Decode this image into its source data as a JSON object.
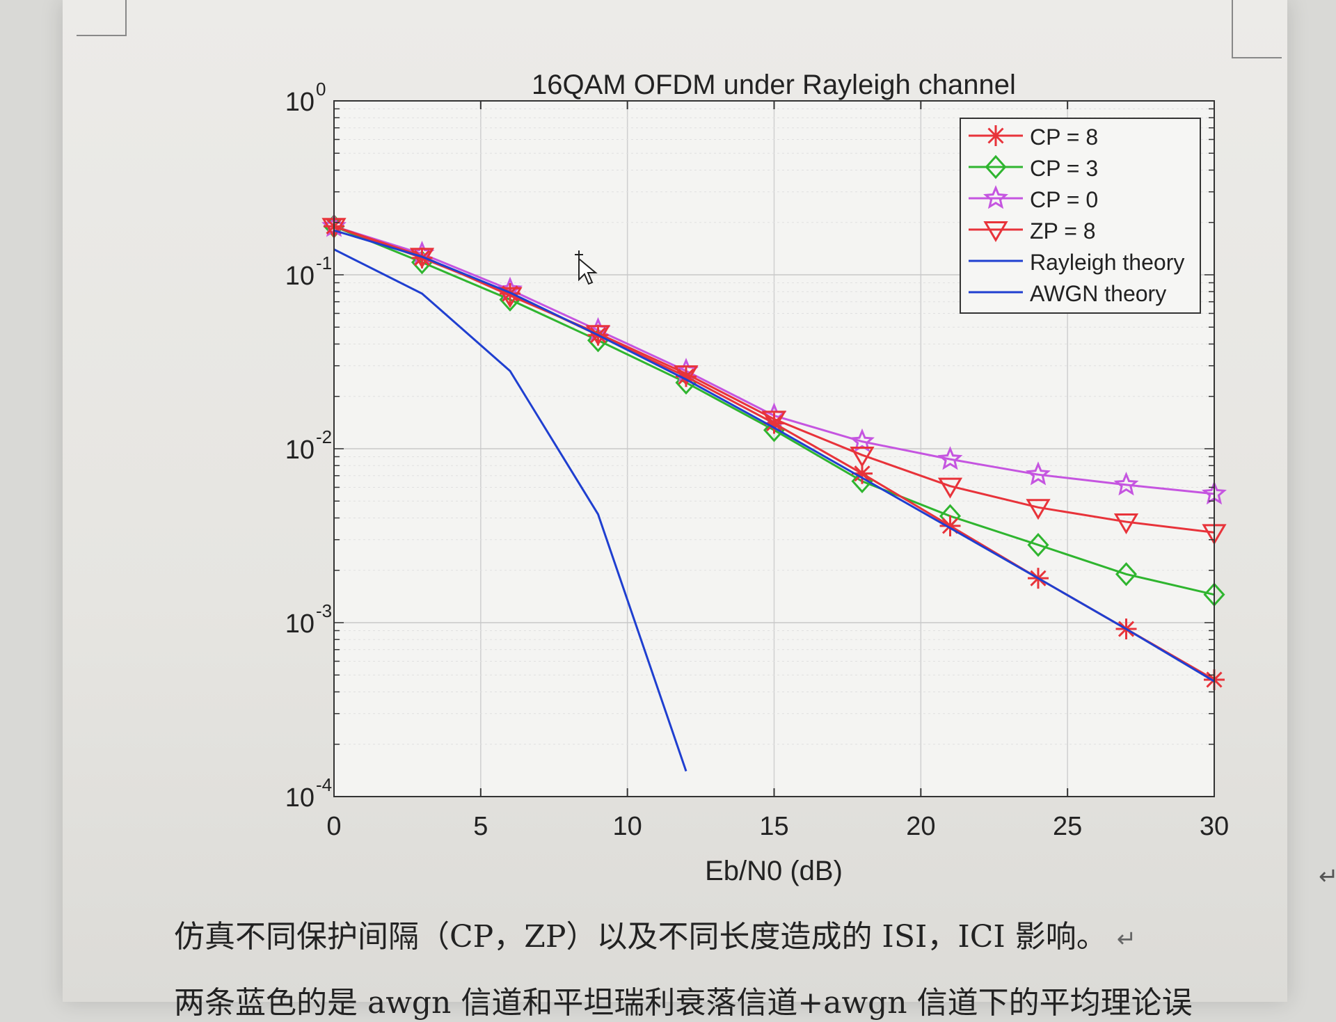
{
  "chart_data": {
    "type": "line",
    "title": "16QAM OFDM under Rayleigh channel",
    "xlabel": "Eb/N0 (dB)",
    "ylabel": "",
    "xlim": [
      0,
      30
    ],
    "ylim": [
      0.0001,
      1
    ],
    "yscale": "log",
    "grid": true,
    "legend_position": "top-right",
    "x_ticks": [
      0,
      5,
      10,
      15,
      20,
      25,
      30
    ],
    "x_tick_labels": [
      "0",
      "5",
      "10",
      "15",
      "20",
      "25",
      "30"
    ],
    "y_ticks": [
      0.0001,
      0.001,
      0.01,
      0.1,
      1
    ],
    "y_tick_labels": [
      {
        "base": "10",
        "exp": "-4"
      },
      {
        "base": "10",
        "exp": "-3"
      },
      {
        "base": "10",
        "exp": "-2"
      },
      {
        "base": "10",
        "exp": "-1"
      },
      {
        "base": "10",
        "exp": "0"
      }
    ],
    "x": [
      0,
      3,
      6,
      9,
      12,
      15,
      18,
      21,
      24,
      27,
      30
    ],
    "series": [
      {
        "name": "CP = 8",
        "color": "#e8333a",
        "marker": "asterisk",
        "values": [
          0.19,
          0.125,
          0.078,
          0.045,
          0.026,
          0.014,
          0.0072,
          0.0036,
          0.0018,
          0.00092,
          0.00047
        ]
      },
      {
        "name": "CP = 3",
        "color": "#2fb52f",
        "marker": "diamond",
        "values": [
          0.19,
          0.118,
          0.072,
          0.042,
          0.024,
          0.0128,
          0.0065,
          0.0041,
          0.0028,
          0.0019,
          0.00145
        ]
      },
      {
        "name": "CP = 0",
        "color": "#c555e0",
        "marker": "pentagram",
        "values": [
          0.19,
          0.132,
          0.082,
          0.048,
          0.028,
          0.0155,
          0.011,
          0.0087,
          0.0071,
          0.0062,
          0.0055
        ]
      },
      {
        "name": "ZP = 8",
        "color": "#e8333a",
        "marker": "triangle-down",
        "values": [
          0.19,
          0.128,
          0.076,
          0.046,
          0.027,
          0.0148,
          0.0092,
          0.0061,
          0.0046,
          0.0038,
          0.0033
        ]
      },
      {
        "name": "Rayleigh theory",
        "color": "#1f3fd0",
        "marker": "none",
        "values": [
          0.18,
          0.127,
          0.079,
          0.045,
          0.025,
          0.0132,
          0.0068,
          0.0035,
          0.0018,
          0.00092,
          0.00046
        ]
      },
      {
        "name": "AWGN theory",
        "color": "#1f3fd0",
        "marker": "none",
        "x": [
          0,
          3,
          6,
          9,
          12
        ],
        "values": [
          0.14,
          0.078,
          0.028,
          0.0042,
          0.00014
        ]
      }
    ]
  },
  "caption": {
    "line1": "仿真不同保护间隔（CP，ZP）以及不同长度造成的 ISI，ICI 影响。",
    "line1_mark": "↵",
    "line2": "两条蓝色的是 awgn 信道和平坦瑞利衰落信道+awgn 信道下的平均理论误"
  },
  "side_mark": "↵"
}
